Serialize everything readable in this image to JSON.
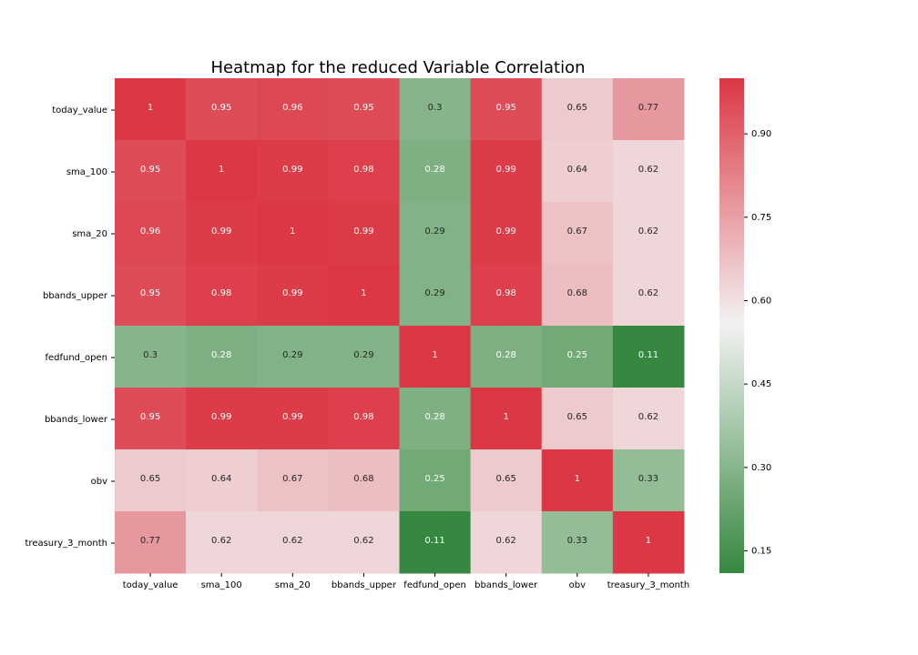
{
  "chart_data": {
    "type": "heatmap",
    "title": "Heatmap for the reduced Variable Correlation",
    "x_labels": [
      "today_value",
      "sma_100",
      "sma_20",
      "bbands_upper",
      "fedfund_open",
      "bbands_lower",
      "obv",
      "treasury_3_month"
    ],
    "y_labels": [
      "today_value",
      "sma_100",
      "sma_20",
      "bbands_upper",
      "fedfund_open",
      "bbands_lower",
      "obv",
      "treasury_3_month"
    ],
    "values": [
      [
        1,
        0.95,
        0.96,
        0.95,
        0.3,
        0.95,
        0.65,
        0.77
      ],
      [
        0.95,
        1,
        0.99,
        0.98,
        0.28,
        0.99,
        0.64,
        0.62
      ],
      [
        0.96,
        0.99,
        1,
        0.99,
        0.29,
        0.99,
        0.67,
        0.62
      ],
      [
        0.95,
        0.98,
        0.99,
        1,
        0.29,
        0.98,
        0.68,
        0.62
      ],
      [
        0.3,
        0.28,
        0.29,
        0.29,
        1,
        0.28,
        0.25,
        0.11
      ],
      [
        0.95,
        0.99,
        0.99,
        0.98,
        0.28,
        1,
        0.65,
        0.62
      ],
      [
        0.65,
        0.64,
        0.67,
        0.68,
        0.25,
        0.65,
        1,
        0.33
      ],
      [
        0.77,
        0.62,
        0.62,
        0.62,
        0.11,
        0.62,
        0.33,
        1
      ]
    ],
    "colorbar": {
      "ticks": [
        "0.15",
        "0.30",
        "0.45",
        "0.60",
        "0.75",
        "0.90"
      ],
      "tick_values": [
        0.15,
        0.3,
        0.45,
        0.6,
        0.75,
        0.9
      ],
      "vmin": 0.11,
      "vmax": 1.0,
      "colors": {
        "low": "#36873f",
        "mid": "#f2f2f2",
        "high": "#dc3744"
      }
    }
  }
}
